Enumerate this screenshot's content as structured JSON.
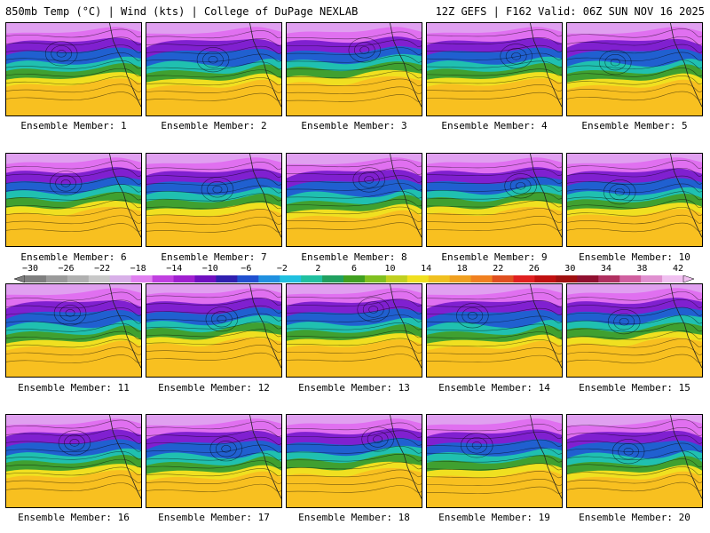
{
  "header": {
    "left": "850mb Temp (°C) | Wind (kts) | College of DuPage NEXLAB",
    "right": "12Z GEFS | F162 Valid: 06Z SUN NOV 16 2025"
  },
  "colorbar": {
    "labels": [
      "−30",
      "−26",
      "−22",
      "−18",
      "−14",
      "−10",
      "−6",
      "−2",
      "2",
      "6",
      "10",
      "14",
      "18",
      "22",
      "26",
      "30",
      "34",
      "38",
      "42"
    ],
    "colors": [
      "#7f7f7f",
      "#9a9a9a",
      "#b0b0b0",
      "#c8c8c8",
      "#d8b0e8",
      "#e080f0",
      "#c040e0",
      "#a020d0",
      "#7010c0",
      "#3020b0",
      "#2050d0",
      "#2090e0",
      "#20c0e0",
      "#20c0a0",
      "#20a060",
      "#40a020",
      "#80c020",
      "#c0d020",
      "#f0e020",
      "#f0c020",
      "#f0a020",
      "#f08020",
      "#e05020",
      "#e02020",
      "#c01010",
      "#a01010",
      "#901030",
      "#b03060",
      "#d060a0",
      "#e090d0",
      "#f0c0f0"
    ]
  },
  "members": [
    {
      "caption": "Ensemble Member: 1"
    },
    {
      "caption": "Ensemble Member: 2"
    },
    {
      "caption": "Ensemble Member: 3"
    },
    {
      "caption": "Ensemble Member: 4"
    },
    {
      "caption": "Ensemble Member: 5"
    },
    {
      "caption": "Ensemble Member: 6"
    },
    {
      "caption": "Ensemble Member: 7"
    },
    {
      "caption": "Ensemble Member: 8"
    },
    {
      "caption": "Ensemble Member: 9"
    },
    {
      "caption": "Ensemble Member: 10"
    },
    {
      "caption": "Ensemble Member: 11"
    },
    {
      "caption": "Ensemble Member: 12"
    },
    {
      "caption": "Ensemble Member: 13"
    },
    {
      "caption": "Ensemble Member: 14"
    },
    {
      "caption": "Ensemble Member: 15"
    },
    {
      "caption": "Ensemble Member: 16"
    },
    {
      "caption": "Ensemble Member: 17"
    },
    {
      "caption": "Ensemble Member: 18"
    },
    {
      "caption": "Ensemble Member: 19"
    },
    {
      "caption": "Ensemble Member: 20"
    }
  ]
}
